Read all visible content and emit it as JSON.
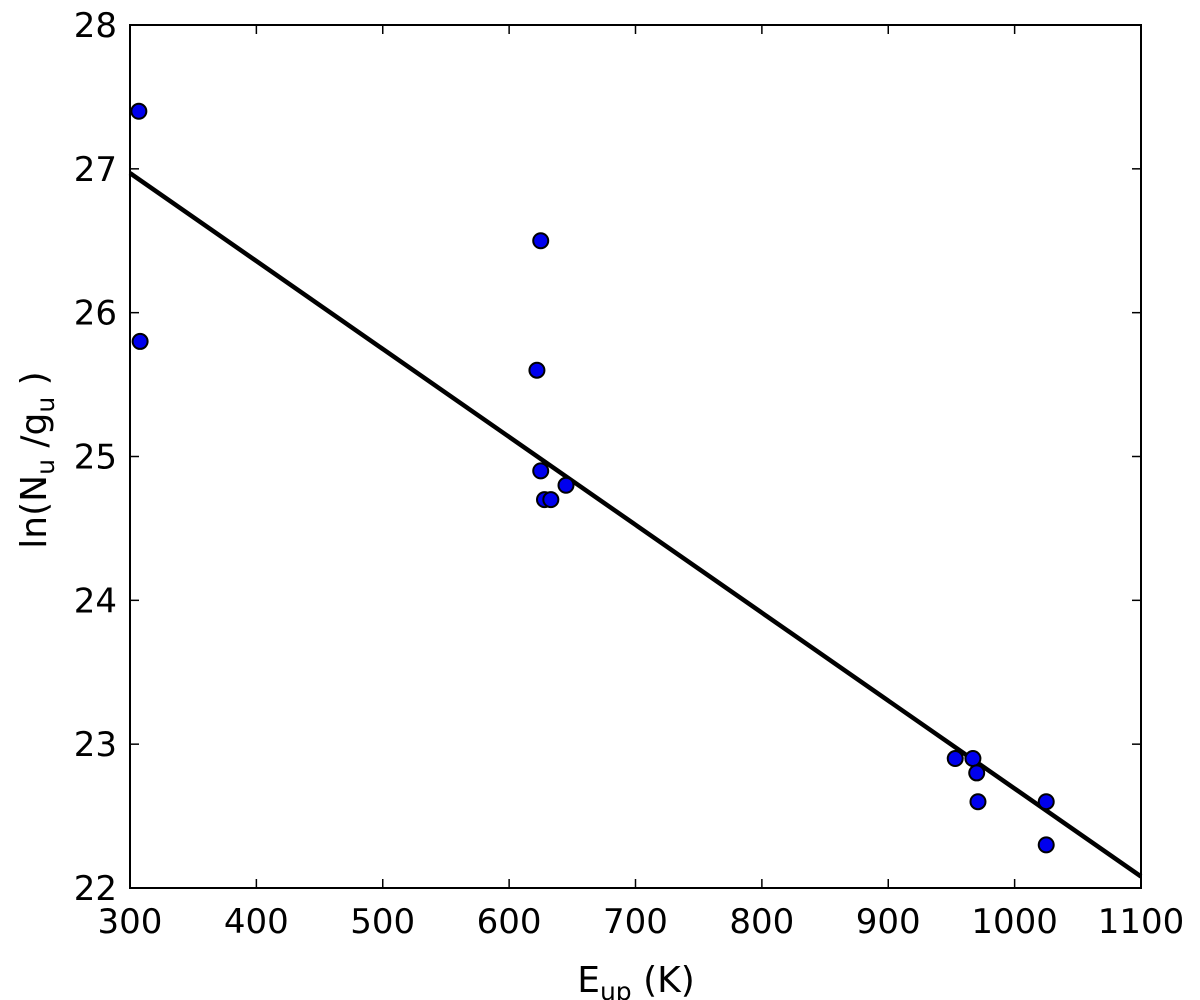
{
  "chart_data": {
    "type": "scatter",
    "title": "",
    "xlabel": "E",
    "xlabel_sub": "up",
    "xlabel_unit": " (K)",
    "ylabel": "ln(N",
    "ylabel_sub1": "u",
    "ylabel_mid": " /g",
    "ylabel_sub2": "u",
    "ylabel_end": " )",
    "xlim": [
      300,
      1100
    ],
    "ylim": [
      22,
      28
    ],
    "xticks": [
      300,
      400,
      500,
      600,
      700,
      800,
      900,
      1000,
      1100
    ],
    "yticks": [
      22,
      23,
      24,
      25,
      26,
      27,
      28
    ],
    "grid": false,
    "legend": "none",
    "colors": {
      "points": "#0000ee",
      "fit_line": "#000000",
      "axes": "#000000"
    },
    "series": [
      {
        "kind": "points",
        "x": [
          307,
          308,
          625,
          622,
          625,
          628,
          633,
          645,
          953,
          967,
          970,
          971,
          1025,
          1025
        ],
        "y": [
          27.4,
          25.8,
          26.5,
          25.6,
          24.9,
          24.7,
          24.7,
          24.8,
          22.9,
          22.9,
          22.8,
          22.6,
          22.6,
          22.3
        ]
      },
      {
        "kind": "line",
        "x": [
          300,
          1100
        ],
        "y": [
          26.97,
          22.08
        ]
      }
    ]
  }
}
